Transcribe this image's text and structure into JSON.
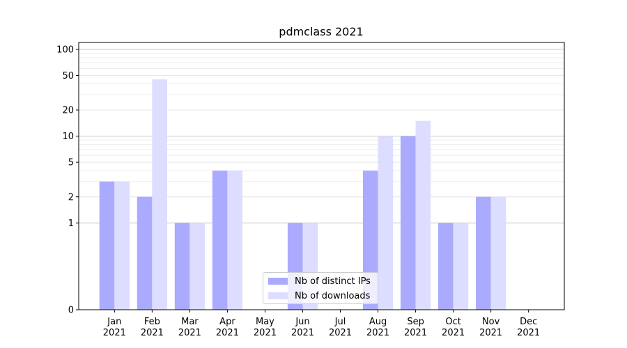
{
  "chart_data": {
    "type": "bar",
    "title": "pdmclass 2021",
    "xlabel": "",
    "ylabel": "",
    "categories": [
      "Jan\n2021",
      "Feb\n2021",
      "Mar\n2021",
      "Apr\n2021",
      "May\n2021",
      "Jun\n2021",
      "Jul\n2021",
      "Aug\n2021",
      "Sep\n2021",
      "Oct\n2021",
      "Nov\n2021",
      "Dec\n2021"
    ],
    "series": [
      {
        "name": "Nb of distinct IPs",
        "color": "#aaaaff",
        "values": [
          3,
          2,
          1,
          4,
          0,
          1,
          0,
          4,
          10,
          1,
          2,
          0
        ]
      },
      {
        "name": "Nb of downloads",
        "color": "#ddddff",
        "values": [
          3,
          45,
          1,
          4,
          0,
          1,
          0,
          10,
          15,
          1,
          2,
          0
        ]
      }
    ],
    "yscale": "symlog",
    "ylim": [
      0,
      120
    ],
    "yticks": [
      0,
      1,
      2,
      5,
      10,
      20,
      50,
      100
    ],
    "grid": true,
    "legend_position": "lower center"
  }
}
